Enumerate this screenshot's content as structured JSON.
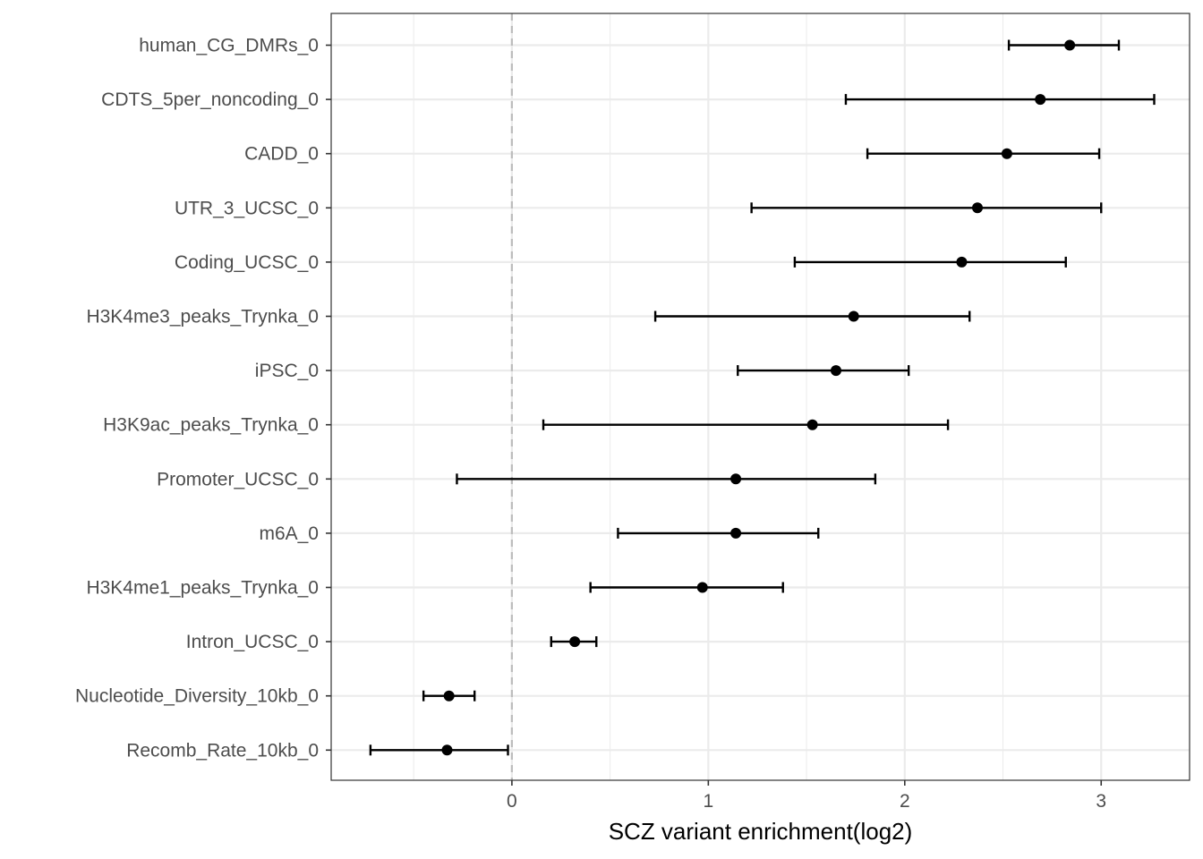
{
  "chart_data": {
    "type": "scatter",
    "subtype": "forest-plot",
    "title": "",
    "xlabel": "SCZ variant enrichment(log2)",
    "ylabel": "",
    "xlim": [
      -0.92,
      3.45
    ],
    "x_ticks": [
      0,
      1,
      2,
      3
    ],
    "x_tick_labels": [
      "0",
      "1",
      "2",
      "3"
    ],
    "reference_line": {
      "x": 0,
      "style": "dashed",
      "color": "#bdbdbd"
    },
    "grid": true,
    "legend": "none",
    "point_color": "#000000",
    "categories": [
      "human_CG_DMRs_0",
      "CDTS_5per_noncoding_0",
      "CADD_0",
      "UTR_3_UCSC_0",
      "Coding_UCSC_0",
      "H3K4me3_peaks_Trynka_0",
      "iPSC_0",
      "H3K9ac_peaks_Trynka_0",
      "Promoter_UCSC_0",
      "m6A_0",
      "H3K4me1_peaks_Trynka_0",
      "Intron_UCSC_0",
      "Nucleotide_Diversity_10kb_0",
      "Recomb_Rate_10kb_0"
    ],
    "estimates": [
      2.84,
      2.69,
      2.52,
      2.37,
      2.29,
      1.74,
      1.65,
      1.53,
      1.14,
      1.14,
      0.97,
      0.32,
      -0.32,
      -0.33
    ],
    "lower": [
      2.53,
      1.7,
      1.81,
      1.22,
      1.44,
      0.73,
      1.15,
      0.16,
      -0.28,
      0.54,
      0.4,
      0.2,
      -0.45,
      -0.72
    ],
    "upper": [
      3.09,
      3.27,
      2.99,
      3.0,
      2.82,
      2.33,
      2.02,
      2.22,
      1.85,
      1.56,
      1.38,
      0.43,
      -0.19,
      -0.02
    ]
  }
}
